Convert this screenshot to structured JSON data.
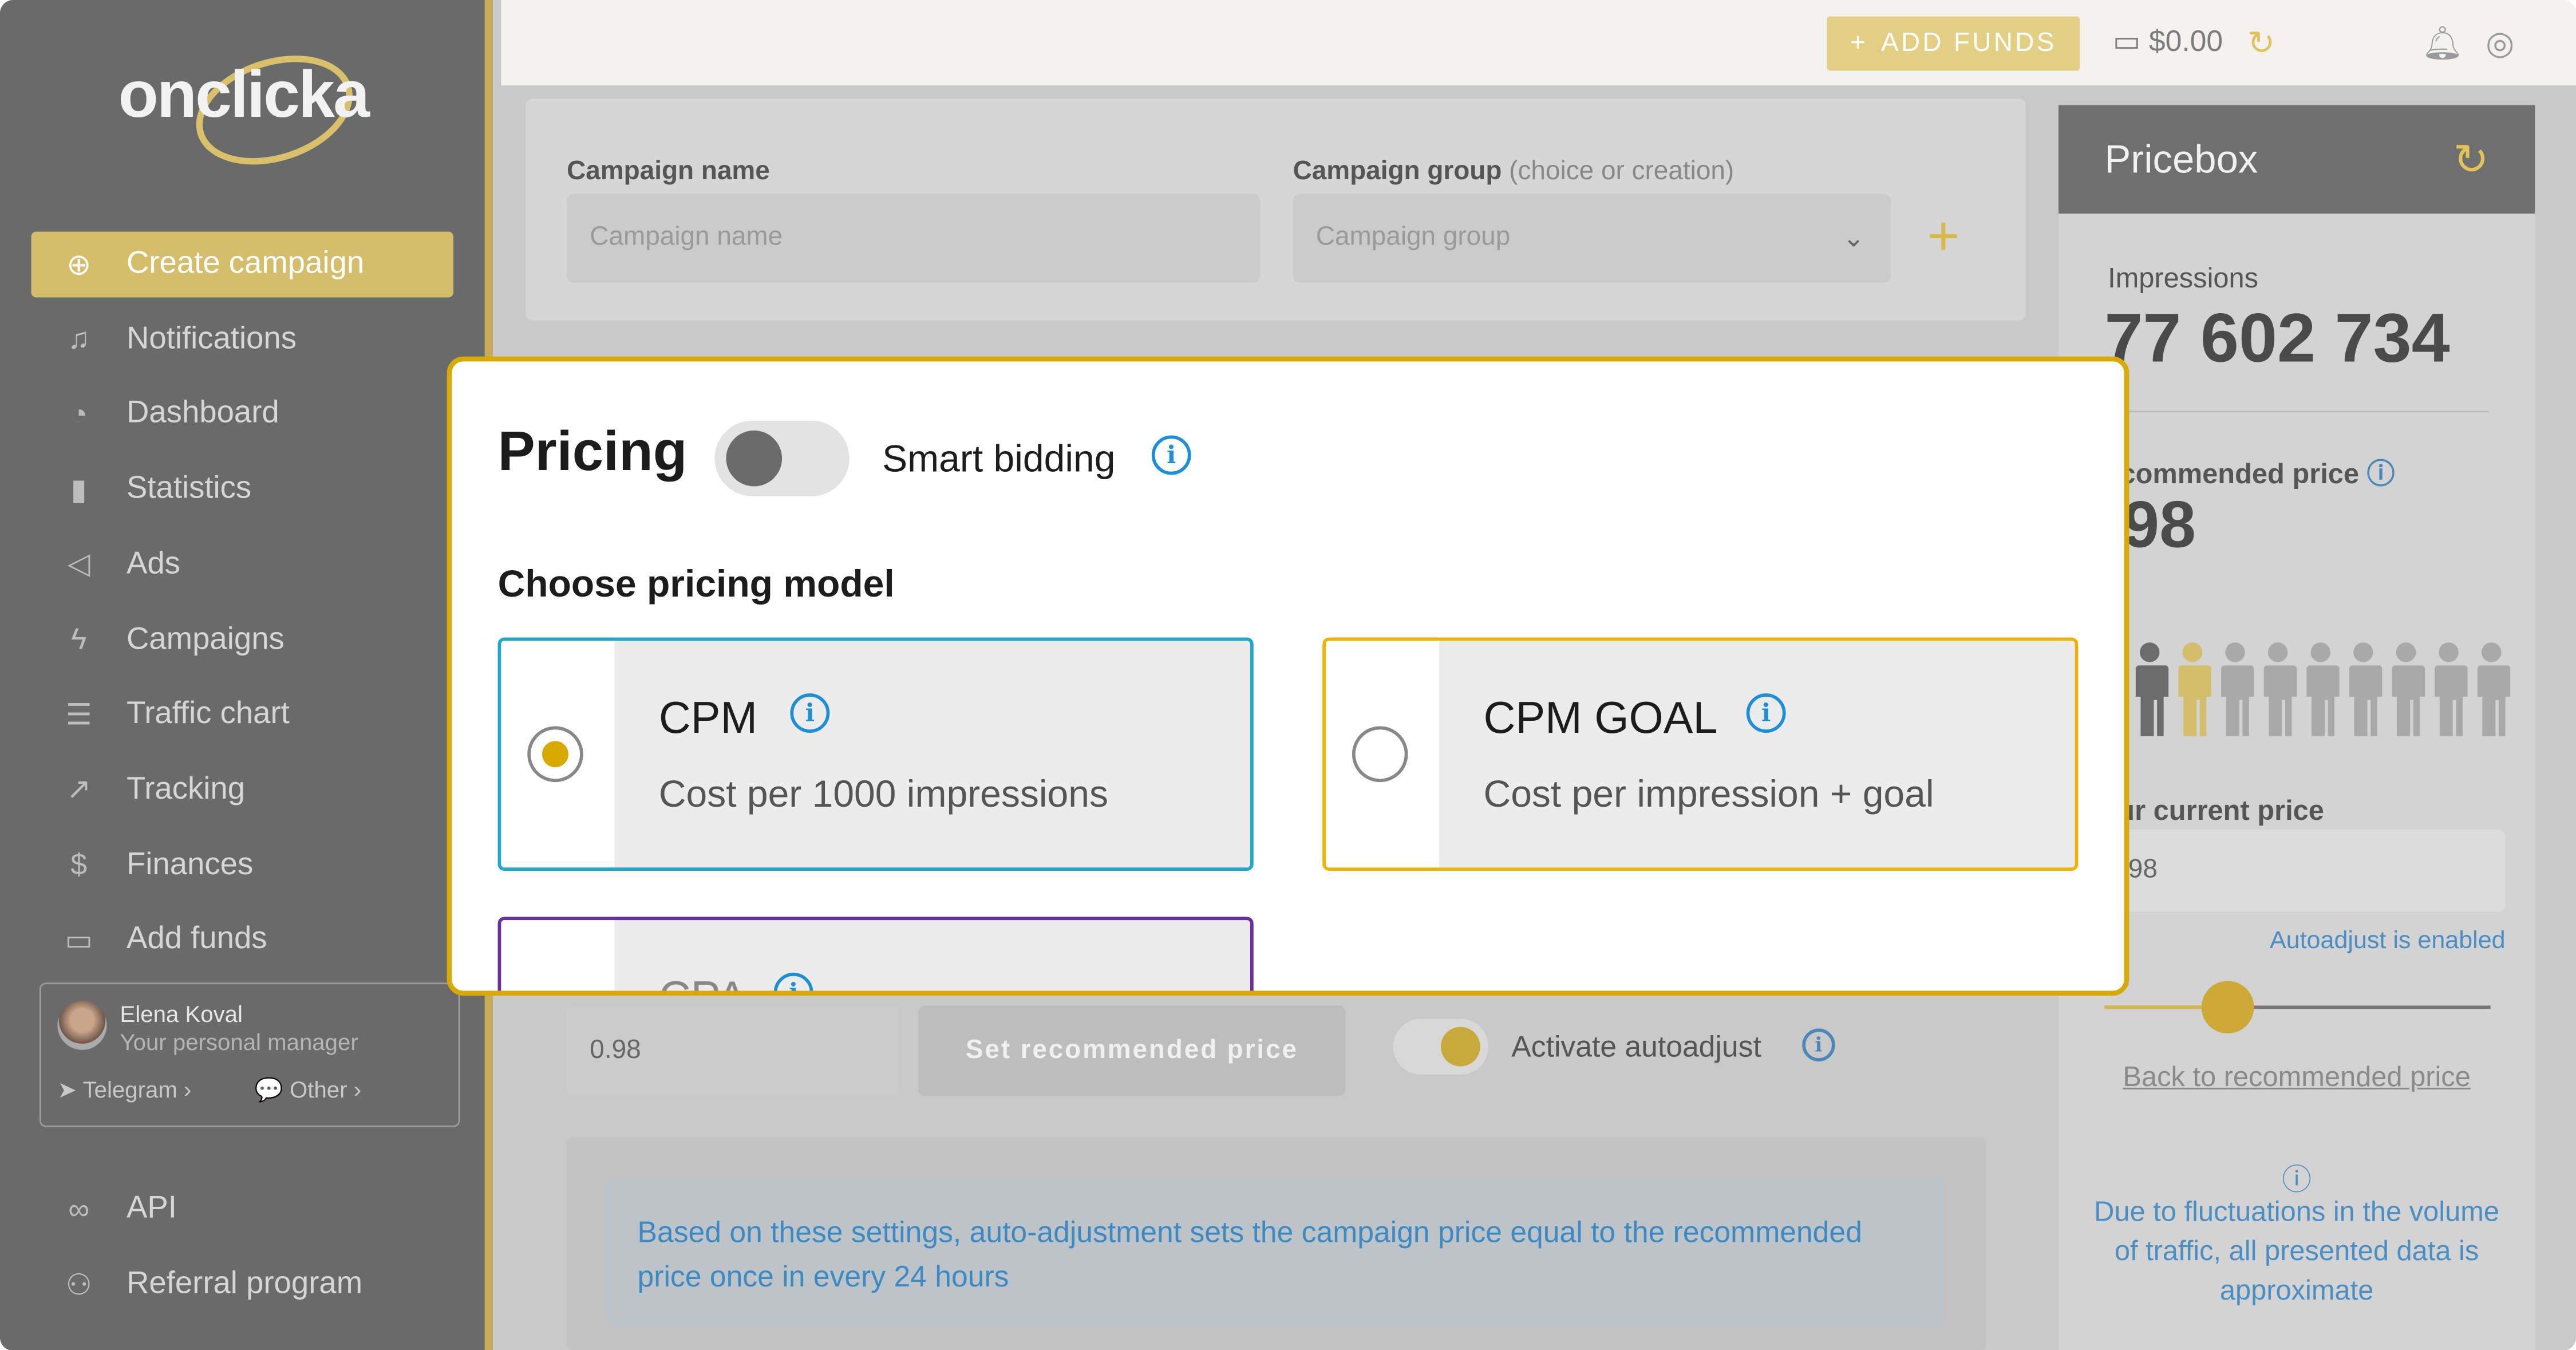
{
  "brand": {
    "logo": "onclicka",
    "accent": "#d4bd6b",
    "highlight": "#d8aa00"
  },
  "sidebar": {
    "items": [
      {
        "label": "Create campaign",
        "icon": "plus-circle-icon",
        "active": true
      },
      {
        "label": "Notifications",
        "icon": "bell-icon"
      },
      {
        "label": "Dashboard",
        "icon": "pie-chart-icon"
      },
      {
        "label": "Statistics",
        "icon": "bar-chart-icon"
      },
      {
        "label": "Ads",
        "icon": "megaphone-icon"
      },
      {
        "label": "Campaigns",
        "icon": "lightning-icon"
      },
      {
        "label": "Traffic chart",
        "icon": "list-icon"
      },
      {
        "label": "Tracking",
        "icon": "trend-icon"
      },
      {
        "label": "Finances",
        "icon": "dollar-icon"
      },
      {
        "label": "Add funds",
        "icon": "card-icon"
      }
    ],
    "manager": {
      "name": "Elena Koval",
      "role": "Your personal manager",
      "telegram": "Telegram",
      "other": "Other"
    },
    "bottom_items": [
      {
        "label": "API",
        "icon": "link-icon"
      },
      {
        "label": "Referral program",
        "icon": "referral-icon"
      }
    ]
  },
  "topbar": {
    "add_funds": "ADD FUNDS",
    "balance": "$0.00"
  },
  "form": {
    "campaign_name_label": "Campaign name",
    "campaign_name_placeholder": "Campaign name",
    "group_label": "Campaign group",
    "group_hint": "(choice or creation)",
    "group_placeholder": "Campaign group"
  },
  "pricing": {
    "title": "Pricing",
    "smart_bidding": "Smart bidding",
    "smart_bidding_on": false,
    "choose": "Choose pricing model",
    "options": [
      {
        "title": "CPM",
        "desc": "Cost per 1000 impressions",
        "selected": true,
        "color": "#1fa8c9"
      },
      {
        "title": "CPM GOAL",
        "desc": "Cost per impression + goal",
        "selected": false,
        "color": "#f0b400"
      },
      {
        "title": "CPA",
        "color": "#6a2fa0"
      }
    ]
  },
  "price_row": {
    "value": "0.98",
    "set_recommended": "Set recommended price",
    "autoadjust": "Activate autoadjust",
    "autoadjust_on": true
  },
  "note": "Based on these settings, auto-adjustment sets the campaign price equal to the recommended price once in every 24 hours",
  "pricebox": {
    "title": "Pricebox",
    "impressions_label": "Impressions",
    "impressions": "77 602 734",
    "recommended_label": "ecommended price",
    "recommended": ".98",
    "people_total": 9,
    "people_highlighted": 2,
    "current_label": "ur current price",
    "current": ".98",
    "autoadjust_status": "Autoadjust is enabled",
    "slider_value": 0.32,
    "back_link": "Back to recommended price",
    "disclaimer": "Due to fluctuations in the volume of traffic, all presented data is approximate"
  }
}
